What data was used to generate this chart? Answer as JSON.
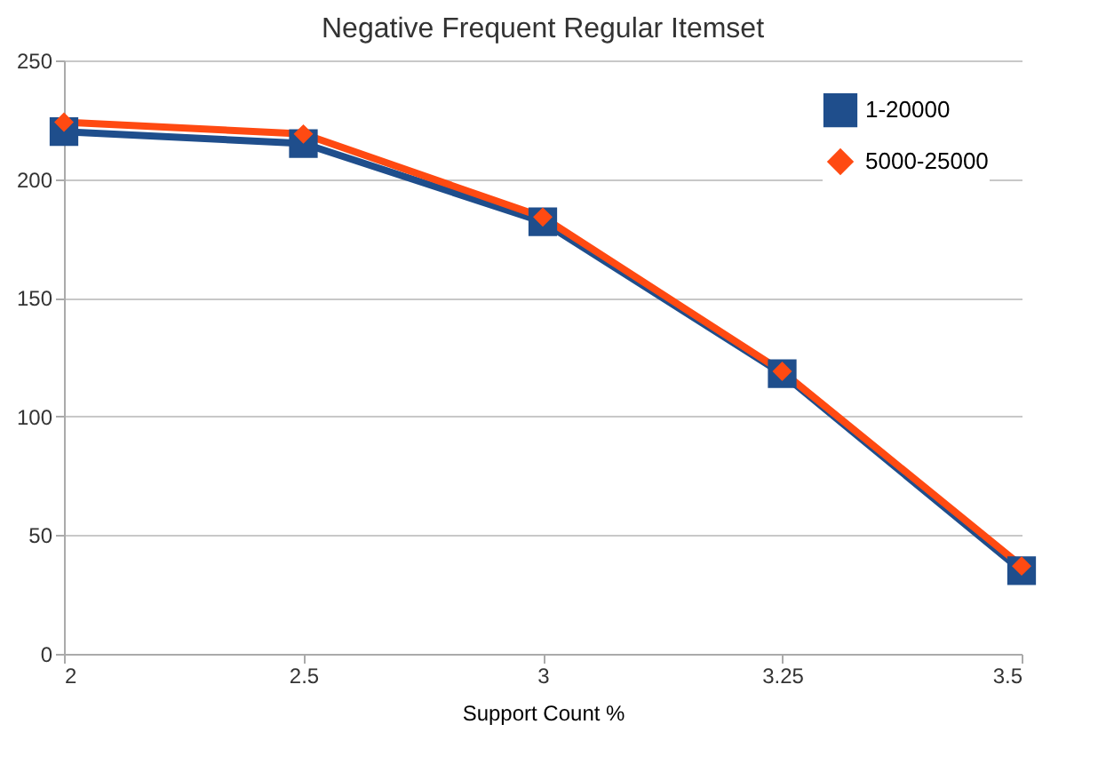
{
  "chart_data": {
    "type": "line",
    "title": "Negative Frequent Regular Itemset",
    "xlabel": "Support Count %",
    "categories": [
      "2",
      "2.5",
      "3",
      "3.25",
      "3.5"
    ],
    "series": [
      {
        "name": "1-20000",
        "color": "#1f4e8c",
        "marker": "square",
        "values": [
          220,
          215,
          182,
          118,
          35
        ]
      },
      {
        "name": "5000-25000",
        "color": "#ff4a12",
        "marker": "diamond",
        "values": [
          224,
          219,
          184,
          119,
          37
        ]
      }
    ],
    "ylim": [
      0,
      250
    ],
    "yticks": [
      0,
      50,
      100,
      150,
      200,
      250
    ],
    "grid": "y",
    "legend": "top right",
    "line_style": "solid"
  }
}
